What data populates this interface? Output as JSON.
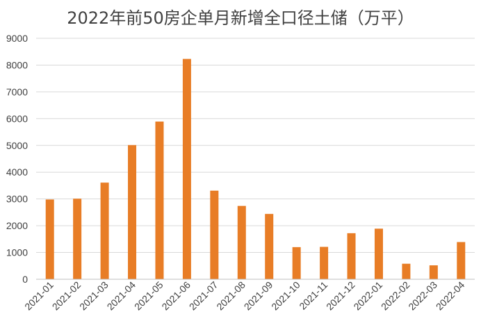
{
  "chart_data": {
    "type": "bar",
    "title": "2022年前50房企单月新增全口径土储（万平）",
    "categories": [
      "2021-01",
      "2021-02",
      "2021-03",
      "2021-04",
      "2021-05",
      "2021-06",
      "2021-07",
      "2021-08",
      "2021-09",
      "2021-10",
      "2021-11",
      "2021-12",
      "2022-01",
      "2022-02",
      "2022-03",
      "2022-04"
    ],
    "values": [
      2980,
      3010,
      3610,
      5010,
      5890,
      8230,
      3310,
      2740,
      2440,
      1200,
      1210,
      1720,
      1890,
      580,
      520,
      1390
    ],
    "ylim": [
      0,
      9000
    ],
    "yticks": [
      0,
      1000,
      2000,
      3000,
      4000,
      5000,
      6000,
      7000,
      8000,
      9000
    ],
    "bar_color": "#e87d26",
    "grid": true,
    "legend": "none"
  }
}
